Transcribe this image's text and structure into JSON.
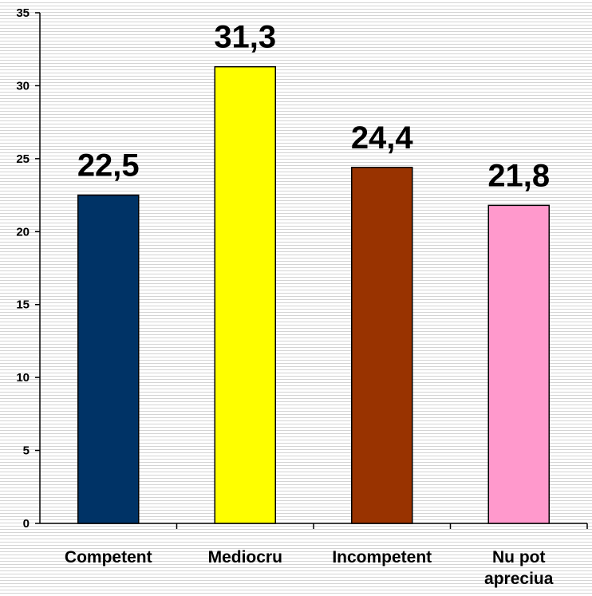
{
  "chart_data": {
    "type": "bar",
    "categories": [
      "Competent",
      "Mediocru",
      "Incompetent",
      "Nu pot apreciua"
    ],
    "category_lines": [
      [
        "Competent"
      ],
      [
        "Mediocru"
      ],
      [
        "Incompetent"
      ],
      [
        "Nu pot",
        "apreciua"
      ]
    ],
    "values": [
      22.5,
      31.3,
      24.4,
      21.8
    ],
    "data_labels": [
      "22,5",
      "31,3",
      "24,4",
      "21,8"
    ],
    "colors": [
      "#003366",
      "#ffff00",
      "#993300",
      "#ff99cc"
    ],
    "ylim": [
      0,
      35
    ],
    "yticks": [
      0,
      5,
      10,
      15,
      20,
      25,
      30,
      35
    ],
    "title": "",
    "xlabel": "",
    "ylabel": "",
    "grid": true,
    "legend": "none"
  }
}
